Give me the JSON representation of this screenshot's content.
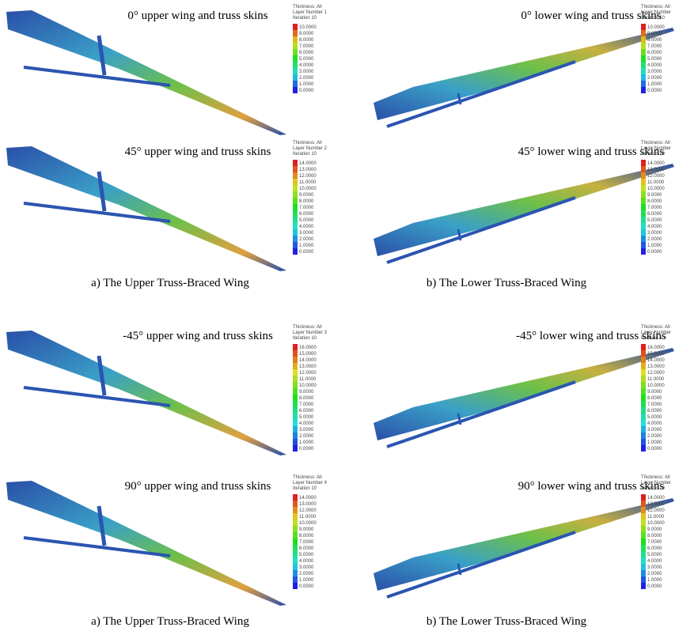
{
  "panels": [
    {
      "title": "0° upper wing and truss skins",
      "legend": {
        "header": [
          "Thickness: All",
          "Layer Number 1",
          "Iteration 10"
        ],
        "values": [
          "10.0000",
          "9.0000",
          "8.0000",
          "7.0000",
          "6.0000",
          "5.0000",
          "4.0000",
          "3.0000",
          "2.0000",
          "1.0000",
          "0.0000"
        ]
      }
    },
    {
      "title": "0° lower wing and truss skins",
      "legend": {
        "header": [
          "Thickness: All",
          "Layer Number",
          "Iteration 10"
        ],
        "values": [
          "10.0000",
          "9.0000",
          "8.0000",
          "7.0000",
          "6.0000",
          "5.0000",
          "4.0000",
          "3.0000",
          "2.0000",
          "1.0000",
          "0.0000"
        ]
      }
    },
    {
      "title": "45° upper wing and truss skins",
      "legend": {
        "header": [
          "Thickness: All",
          "Layer Number 2",
          "Iteration 10"
        ],
        "values": [
          "14.0000",
          "13.0000",
          "12.0000",
          "11.0000",
          "10.0000",
          "9.0000",
          "8.0000",
          "7.0000",
          "6.0000",
          "5.0000",
          "4.0000",
          "3.0000",
          "2.0000",
          "1.0000",
          "0.0000"
        ]
      }
    },
    {
      "title": "45° lower wing and truss skins",
      "legend": {
        "header": [
          "Thickness: All",
          "Layer Number",
          "Iteration 10"
        ],
        "values": [
          "14.0000",
          "13.0000",
          "12.0000",
          "11.0000",
          "10.0000",
          "9.0000",
          "8.0000",
          "7.0000",
          "6.0000",
          "5.0000",
          "4.0000",
          "3.0000",
          "2.0000",
          "1.0000",
          "0.0000"
        ]
      }
    },
    {
      "title": "-45° upper wing and truss skins",
      "legend": {
        "header": [
          "Thickness: All",
          "Layer Number 3",
          "Iteration 10"
        ],
        "values": [
          "16.0000",
          "15.0000",
          "14.0000",
          "13.0000",
          "12.0000",
          "11.0000",
          "10.0000",
          "9.0000",
          "8.0000",
          "7.0000",
          "6.0000",
          "5.0000",
          "4.0000",
          "3.0000",
          "2.0000",
          "1.0000",
          "0.0000"
        ]
      }
    },
    {
      "title": "-45° lower wing and truss skins",
      "legend": {
        "header": [
          "Thickness: All",
          "Layer Number",
          "Iteration 10"
        ],
        "values": [
          "16.0000",
          "15.0000",
          "14.0000",
          "13.0000",
          "12.0000",
          "11.0000",
          "10.0000",
          "9.0000",
          "8.0000",
          "7.0000",
          "6.0000",
          "5.0000",
          "4.0000",
          "3.0000",
          "2.0000",
          "1.0000",
          "0.0000"
        ]
      }
    },
    {
      "title": "90° upper wing and truss skins",
      "legend": {
        "header": [
          "Thickness: All",
          "Layer Number 4",
          "Iteration 10"
        ],
        "values": [
          "14.0000",
          "13.0000",
          "12.0000",
          "11.0000",
          "10.0000",
          "9.0000",
          "8.0000",
          "7.0000",
          "6.0000",
          "5.0000",
          "4.0000",
          "3.0000",
          "2.0000",
          "1.0000",
          "0.0000"
        ]
      }
    },
    {
      "title": "90° lower wing and truss skins",
      "legend": {
        "header": [
          "Thickness: All",
          "Layer Number",
          "Iteration 10"
        ],
        "values": [
          "14.0000",
          "13.0000",
          "12.0000",
          "11.0000",
          "10.0000",
          "9.0000",
          "8.0000",
          "7.0000",
          "6.0000",
          "5.0000",
          "4.0000",
          "3.0000",
          "2.0000",
          "1.0000",
          "0.0000"
        ]
      }
    }
  ],
  "captions": [
    "a) The Upper Truss-Braced Wing",
    "b) The Lower Truss-Braced Wing",
    "a) The Upper Truss-Braced Wing",
    "b) The Lower Truss-Braced Wing"
  ]
}
